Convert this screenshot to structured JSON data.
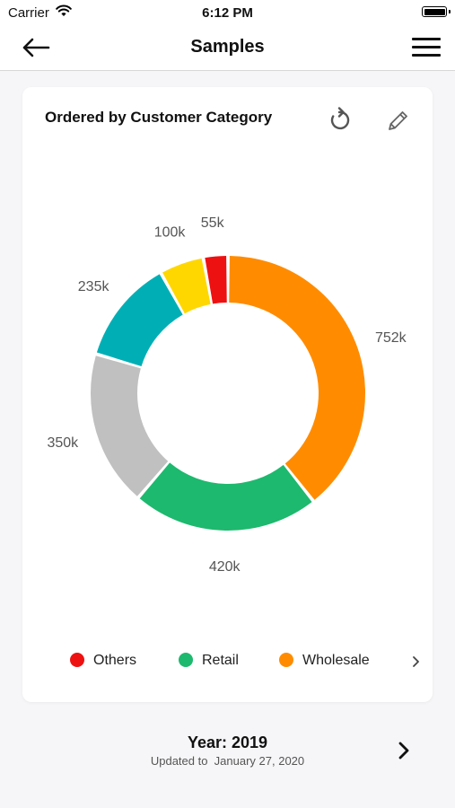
{
  "status_bar": {
    "carrier": "Carrier",
    "time": "6:12 PM"
  },
  "nav": {
    "title": "Samples"
  },
  "card": {
    "title": "Ordered by Customer Category"
  },
  "chart_data": {
    "type": "pie",
    "title": "Ordered by Customer Category",
    "slices": [
      {
        "label": "752k",
        "value": 752000,
        "color": "#FF8C00"
      },
      {
        "label": "420k",
        "value": 420000,
        "color": "#1DB96E"
      },
      {
        "label": "350k",
        "value": 350000,
        "color": "#C0C0C0"
      },
      {
        "label": "235k",
        "value": 235000,
        "color": "#00AFB5"
      },
      {
        "label": "100k",
        "value": 100000,
        "color": "#FFD700"
      },
      {
        "label": "55k",
        "value": 55000,
        "color": "#EE1111"
      }
    ],
    "legend": [
      {
        "label": "Others",
        "color": "#EE1111"
      },
      {
        "label": "Retail",
        "color": "#1DB96E"
      },
      {
        "label": "Wholesale",
        "color": "#FF8C00"
      }
    ]
  },
  "footer": {
    "year": "Year: 2019",
    "updated": "Updated to  January 27, 2020"
  },
  "icons": {
    "back": "arrow-left-icon",
    "menu": "hamburger-menu-icon",
    "refresh": "refresh-icon",
    "edit": "pencil-icon",
    "legend_next": "chevron-right-icon",
    "next": "chevron-right-icon"
  }
}
